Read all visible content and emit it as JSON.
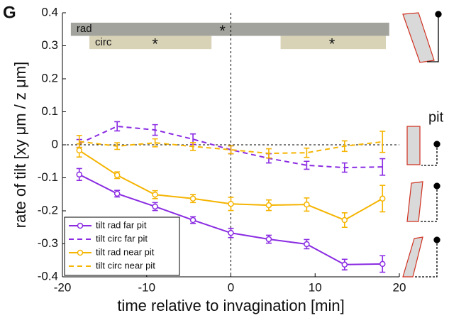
{
  "panel_label": "G",
  "side_label": "pit",
  "chart_data": {
    "type": "line",
    "xlabel": "time relative to invagination [min]",
    "ylabel": "rate of tilt [xy μm / z μm]",
    "xlim": [
      -20,
      20
    ],
    "xticks": [
      -20,
      -10,
      0,
      10,
      20
    ],
    "ylim": [
      -0.4,
      0.4
    ],
    "yticks": [
      -0.4,
      -0.3,
      -0.2,
      -0.1,
      0,
      0.1,
      0.2,
      0.3,
      0.4
    ],
    "zero_lines": true,
    "legend": "lower left",
    "x": [
      -18,
      -13.5,
      -9,
      -4.5,
      0,
      4.5,
      9,
      13.5,
      18
    ],
    "series": [
      {
        "name": "tilt rad far pit",
        "color": "#8a2be2",
        "dash": false,
        "marker": true,
        "values": [
          -0.09,
          -0.148,
          -0.187,
          -0.228,
          -0.267,
          -0.286,
          -0.301,
          -0.363,
          -0.361
        ],
        "errors": [
          0.018,
          0.01,
          0.012,
          0.01,
          0.014,
          0.012,
          0.014,
          0.016,
          0.025
        ]
      },
      {
        "name": "tilt circ far pit",
        "color": "#8a2be2",
        "dash": true,
        "marker": false,
        "values": [
          0.004,
          0.056,
          0.045,
          0.017,
          -0.015,
          -0.041,
          -0.062,
          -0.069,
          -0.067
        ],
        "errors": [
          0.012,
          0.014,
          0.016,
          0.016,
          0.012,
          0.014,
          0.012,
          0.014,
          0.025
        ]
      },
      {
        "name": "tilt rad near pit",
        "color": "#f5b400",
        "dash": false,
        "marker": true,
        "values": [
          -0.017,
          -0.092,
          -0.151,
          -0.163,
          -0.179,
          -0.183,
          -0.181,
          -0.228,
          -0.163
        ],
        "errors": [
          0.02,
          0.01,
          0.012,
          0.012,
          0.02,
          0.016,
          0.02,
          0.022,
          0.04
        ]
      },
      {
        "name": "tilt circ near pit",
        "color": "#f5b400",
        "dash": true,
        "marker": false,
        "values": [
          0.01,
          -0.004,
          0.006,
          -0.005,
          -0.015,
          -0.026,
          -0.024,
          -0.004,
          0.009
        ],
        "errors": [
          0.018,
          0.01,
          0.012,
          0.012,
          0.012,
          0.014,
          0.014,
          0.016,
          0.032
        ]
      }
    ],
    "bands": [
      {
        "label": "rad",
        "x": [
          -19,
          18.8
        ],
        "y": [
          0.33,
          0.37
        ],
        "color": "#a3a39d"
      },
      {
        "label": "circ",
        "x": [
          -16.8,
          -2.3
        ],
        "y": [
          0.29,
          0.33
        ],
        "color": "#d8d2b6"
      },
      {
        "x": [
          5.9,
          18.4
        ],
        "y": [
          0.29,
          0.33
        ],
        "color": "#d8d2b6"
      }
    ],
    "stars": [
      {
        "text": "*",
        "x": -1,
        "y": 0.35
      },
      {
        "text": "*",
        "x": -9,
        "y": 0.31
      },
      {
        "text": "*",
        "x": 12,
        "y": 0.31
      }
    ]
  }
}
